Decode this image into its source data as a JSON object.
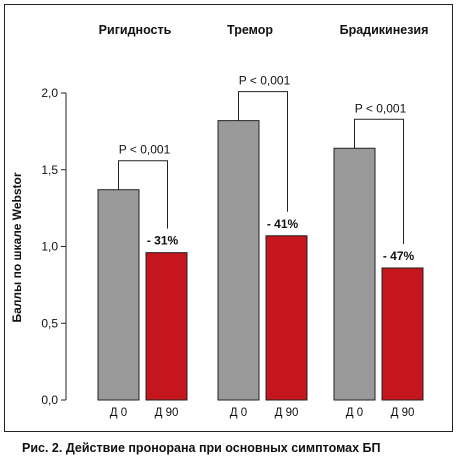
{
  "chart_data": {
    "type": "bar",
    "ylabel": "Баллы по шкале Webstor",
    "ylim": [
      0,
      2.0
    ],
    "yticks": [
      "0,0",
      "0,5",
      "1,0",
      "1,5",
      "2,0"
    ],
    "ytick_values": [
      0,
      0.5,
      1.0,
      1.5,
      2.0
    ],
    "groups": [
      {
        "title": "Ригидность",
        "categories": [
          "Д 0",
          "Д 90"
        ],
        "values": [
          1.37,
          0.96
        ],
        "change_label": "- 31%",
        "significance": "P < 0,001"
      },
      {
        "title": "Тремор",
        "categories": [
          "Д 0",
          "Д 90"
        ],
        "values": [
          1.82,
          1.07
        ],
        "change_label": "- 41%",
        "significance": "P < 0,001"
      },
      {
        "title": "Брадикинезия",
        "categories": [
          "Д 0",
          "Д 90"
        ],
        "values": [
          1.64,
          0.86
        ],
        "change_label": "- 47%",
        "significance": "P < 0,001"
      }
    ],
    "colors": {
      "baseline": "#9a9a9a",
      "day90": "#c4161c"
    }
  },
  "caption": "Рис. 2. Действие пронорана при основных симптомах БП"
}
